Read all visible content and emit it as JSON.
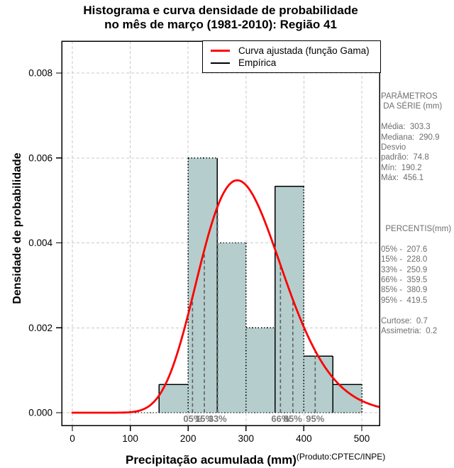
{
  "title": {
    "line1": "Histograma e curva densidade de probabilidade",
    "line2": "no mês de março (1981-2010): Região 41"
  },
  "axes": {
    "y_label": "Densidade de probabilidade",
    "x_label": "Precipitação acumulada (mm)",
    "credit": "(Produto:CPTEC/INPE)",
    "x_tick_labels": [
      "0",
      "100",
      "200",
      "300",
      "400",
      "500"
    ],
    "y_tick_labels": [
      "0.000",
      "0.002",
      "0.004",
      "0.006",
      "0.008"
    ]
  },
  "legend": {
    "items": [
      {
        "name": "fitted-gamma-curve",
        "label": "Curva ajustada (função Gama)",
        "color": "#ff0000",
        "thickness": 3
      },
      {
        "name": "empirical",
        "label": "Empírica",
        "color": "#000000",
        "thickness": 2
      }
    ]
  },
  "chart_data": {
    "type": "bar",
    "subtype": "histogram-with-density-curve",
    "title": "Histograma e curva densidade de probabilidade no mês de março (1981-2010): Região 41",
    "xlabel": "Precipitação acumulada (mm)",
    "ylabel": "Densidade de probabilidade",
    "xlim": [
      0,
      530
    ],
    "ylim": [
      0,
      0.0088
    ],
    "x_ticks": [
      0,
      100,
      200,
      300,
      400,
      500
    ],
    "y_ticks": [
      0,
      0.002,
      0.004,
      0.006,
      0.008
    ],
    "grid": true,
    "legend_position": "top-right",
    "n_observations": 30,
    "bin_width_mm": 50,
    "bins": [
      {
        "x0": 150,
        "x1": 200,
        "count": 1,
        "density": 0.000667
      },
      {
        "x0": 200,
        "x1": 250,
        "count": 9,
        "density": 0.006
      },
      {
        "x0": 250,
        "x1": 300,
        "count": 6,
        "density": 0.004
      },
      {
        "x0": 300,
        "x1": 350,
        "count": 3,
        "density": 0.002
      },
      {
        "x0": 350,
        "x1": 400,
        "count": 8,
        "density": 0.005333
      },
      {
        "x0": 400,
        "x1": 450,
        "count": 2,
        "density": 0.001333
      },
      {
        "x0": 450,
        "x1": 500,
        "count": 1,
        "density": 0.000667
      }
    ],
    "fitted_curve": {
      "distribution": "gamma",
      "mean": 303.3,
      "sd": 74.8,
      "peak_x": 285,
      "peak_density": 0.0054
    },
    "percentiles": [
      {
        "label": "05%",
        "value": 207.6
      },
      {
        "label": "15%",
        "value": 228.0
      },
      {
        "label": "33%",
        "value": 250.9
      },
      {
        "label": "66%",
        "value": 359.5
      },
      {
        "label": "85%",
        "value": 380.9
      },
      {
        "label": "95%",
        "value": 419.5
      }
    ],
    "stats": {
      "media": 303.3,
      "mediana": 290.9,
      "desvio_padrao": 74.8,
      "min": 190.2,
      "max": 456.1,
      "curtose": 0.7,
      "assimetria": 0.2
    }
  },
  "panel": {
    "lines": [
      "PARÂMETROS",
      " DA SÉRIE (mm)",
      "",
      "Média:  303.3",
      "Mediana:  290.9",
      "Desvio",
      "padrão:  74.8",
      "Mín:  190.2",
      "Máx:  456.1",
      "",
      "",
      "",
      "",
      "  PERCENTIS(mm)",
      "",
      "05% -  207.6",
      "15% -  228.0",
      "33% -  250.9",
      "66% -  359.5",
      "85% -  380.9",
      "95% -  419.5",
      "",
      "Curtose:  0.7",
      "Assimetria:  0.2"
    ]
  },
  "colors": {
    "bar_fill": "#b5cecd",
    "bar_border": "#000000",
    "curve": "#fb0000",
    "grid": "#c9c9c9",
    "percentile_line": "#5f5f5f",
    "percentile_label": "#7b7b7b",
    "panel_text": "#6e6e6e"
  }
}
